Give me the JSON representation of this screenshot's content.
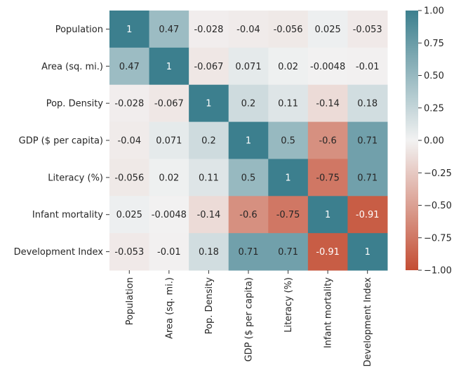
{
  "chart_data": {
    "type": "heatmap",
    "title": "",
    "xlabel": "",
    "ylabel": "",
    "rows": [
      "Population",
      "Area (sq. mi.)",
      "Pop. Density",
      "GDP ($ per capita)",
      "Literacy (%)",
      "Infant mortality",
      "Development Index"
    ],
    "columns": [
      "Population",
      "Area (sq. mi.)",
      "Pop. Density",
      "GDP ($ per capita)",
      "Literacy (%)",
      "Infant mortality",
      "Development Index"
    ],
    "values": [
      [
        1,
        0.47,
        -0.028,
        -0.04,
        -0.056,
        0.025,
        -0.053
      ],
      [
        0.47,
        1,
        -0.067,
        0.071,
        0.02,
        -0.0048,
        -0.01
      ],
      [
        -0.028,
        -0.067,
        1,
        0.2,
        0.11,
        -0.14,
        0.18
      ],
      [
        -0.04,
        0.071,
        0.2,
        1,
        0.5,
        -0.6,
        0.71
      ],
      [
        -0.056,
        0.02,
        0.11,
        0.5,
        1,
        -0.75,
        0.71
      ],
      [
        0.025,
        -0.0048,
        -0.14,
        -0.6,
        -0.75,
        1,
        -0.91
      ],
      [
        -0.053,
        -0.01,
        0.18,
        0.71,
        0.71,
        -0.91,
        1
      ]
    ],
    "labels": [
      [
        "1",
        "0.47",
        "-0.028",
        "-0.04",
        "-0.056",
        "0.025",
        "-0.053"
      ],
      [
        "0.47",
        "1",
        "-0.067",
        "0.071",
        "0.02",
        "-0.0048",
        "-0.01"
      ],
      [
        "-0.028",
        "-0.067",
        "1",
        "0.2",
        "0.11",
        "-0.14",
        "0.18"
      ],
      [
        "-0.04",
        "0.071",
        "0.2",
        "1",
        "0.5",
        "-0.6",
        "0.71"
      ],
      [
        "-0.056",
        "0.02",
        "0.11",
        "0.5",
        "1",
        "-0.75",
        "0.71"
      ],
      [
        "0.025",
        "-0.0048",
        "-0.14",
        "-0.6",
        "-0.75",
        "1",
        "-0.91"
      ],
      [
        "-0.053",
        "-0.01",
        "0.18",
        "0.71",
        "0.71",
        "-0.91",
        "1"
      ]
    ],
    "vmin": -1,
    "vmax": 1,
    "colormap": {
      "low": "#c44e34",
      "mid": "#f2f2f2",
      "high": "#3c7f8e"
    },
    "colorbar": {
      "ticks": [
        1.0,
        0.75,
        0.5,
        0.25,
        0.0,
        -0.25,
        -0.5,
        -0.75,
        -1.0
      ],
      "tick_labels": [
        "1.00",
        "0.75",
        "0.50",
        "0.25",
        "0.00",
        "−0.25",
        "−0.50",
        "−0.75",
        "−1.00"
      ]
    }
  }
}
